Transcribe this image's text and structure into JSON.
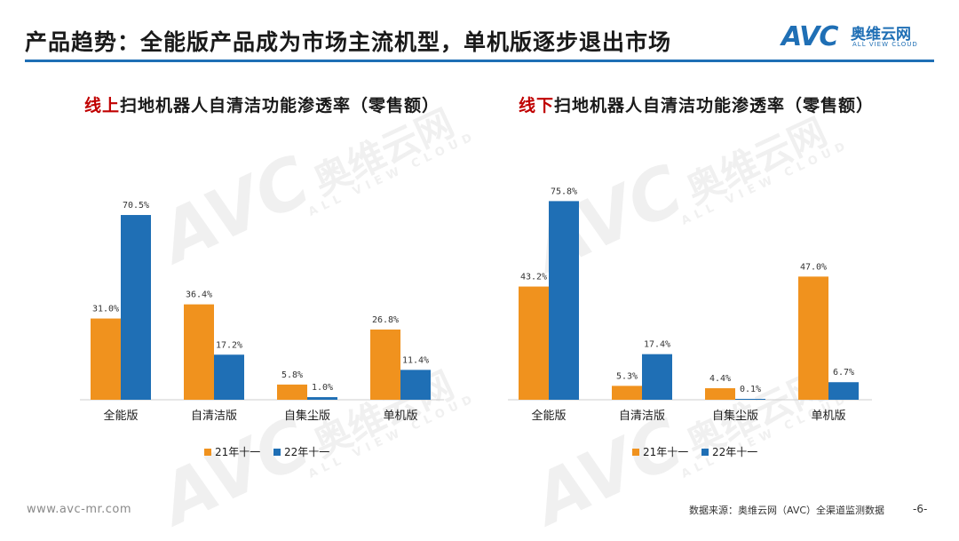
{
  "header": {
    "title": "产品趋势：全能版产品成为市场主流机型，单机版逐步退出市场"
  },
  "logo": {
    "avc": "AVC",
    "cn": "奥维云网",
    "en": "ALL VIEW CLOUD"
  },
  "footer": {
    "url": "www.avc-mr.com",
    "source": "数据来源：奥维云网（AVC）全渠道监测数据",
    "page": "-6-"
  },
  "colors": {
    "series_21": "#f0921e",
    "series_22": "#1f6fb5",
    "title_accent": "#c00000",
    "header_rule": "#1f6fb5"
  },
  "chart_data": [
    {
      "type": "bar",
      "title": "线上扫地机器人自清洁功能渗透率（零售额）",
      "title_accent": "线上",
      "title_rest": "扫地机器人自清洁功能渗透率（零售额）",
      "categories": [
        "全能版",
        "自清洁版",
        "自集尘版",
        "单机版"
      ],
      "series": [
        {
          "name": "21年十一",
          "values": [
            31.0,
            36.4,
            5.8,
            26.8
          ],
          "labels": [
            "31.0%",
            "36.4%",
            "5.8%",
            "26.8%"
          ]
        },
        {
          "name": "22年十一",
          "values": [
            70.5,
            17.2,
            1.0,
            11.4
          ],
          "labels": [
            "70.5%",
            "17.2%",
            "1.0%",
            "11.4%"
          ]
        }
      ],
      "ylim": [
        0,
        80
      ],
      "legend": "bottom",
      "grid": false
    },
    {
      "type": "bar",
      "title": "线下扫地机器人自清洁功能渗透率（零售额）",
      "title_accent": "线下",
      "title_rest": "扫地机器人自清洁功能渗透率（零售额）",
      "categories": [
        "全能版",
        "自清洁版",
        "自集尘版",
        "单机版"
      ],
      "series": [
        {
          "name": "21年十一",
          "values": [
            43.2,
            5.3,
            4.4,
            47.0
          ],
          "labels": [
            "43.2%",
            "5.3%",
            "4.4%",
            "47.0%"
          ]
        },
        {
          "name": "22年十一",
          "values": [
            75.8,
            17.4,
            0.1,
            6.7
          ],
          "labels": [
            "75.8%",
            "17.4%",
            "0.1%",
            "6.7%"
          ]
        }
      ],
      "ylim": [
        0,
        80
      ],
      "legend": "bottom",
      "grid": false
    }
  ]
}
